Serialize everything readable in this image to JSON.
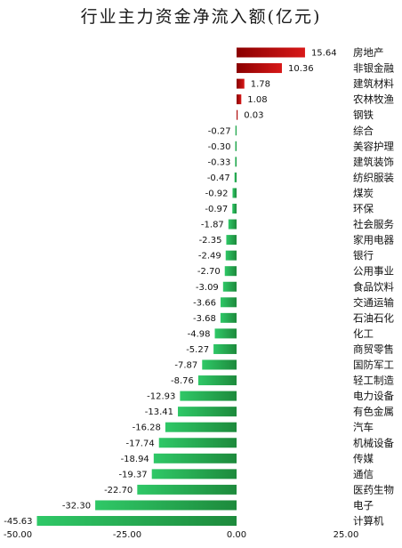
{
  "chart_data": {
    "type": "bar",
    "orientation": "horizontal",
    "title": "行业主力资金净流入额(亿元)",
    "categories": [
      "房地产",
      "非银金融",
      "建筑材料",
      "农林牧渔",
      "钢铁",
      "综合",
      "美容护理",
      "建筑装饰",
      "纺织服装",
      "煤炭",
      "环保",
      "社会服务",
      "家用电器",
      "银行",
      "公用事业",
      "食品饮料",
      "交通运输",
      "石油石化",
      "化工",
      "商贸零售",
      "国防军工",
      "轻工制造",
      "电力设备",
      "有色金属",
      "汽车",
      "机械设备",
      "传媒",
      "通信",
      "医药生物",
      "电子",
      "计算机"
    ],
    "values": [
      15.64,
      10.36,
      1.78,
      1.08,
      0.03,
      -0.27,
      -0.3,
      -0.33,
      -0.47,
      -0.92,
      -0.97,
      -1.87,
      -2.35,
      -2.49,
      -2.7,
      -3.09,
      -3.66,
      -3.68,
      -4.98,
      -5.27,
      -7.87,
      -8.76,
      -12.93,
      -13.41,
      -16.28,
      -17.74,
      -18.94,
      -19.37,
      -22.7,
      -32.3,
      -45.63
    ],
    "value_labels": [
      "15.64",
      "10.36",
      "1.78",
      "1.08",
      "0.03",
      "-0.27",
      "-0.30",
      "-0.33",
      "-0.47",
      "-0.92",
      "-0.97",
      "-1.87",
      "-2.35",
      "-2.49",
      "-2.70",
      "-3.09",
      "-3.66",
      "-3.68",
      "-4.98",
      "-5.27",
      "-7.87",
      "-8.76",
      "-12.93",
      "-13.41",
      "-16.28",
      "-17.74",
      "-18.94",
      "-19.37",
      "-22.70",
      "-32.30",
      "-45.63"
    ],
    "xlim": [
      -50,
      25
    ],
    "xticks": [
      "-50.00",
      "-25.00",
      "0.00",
      "25.00"
    ],
    "xtick_values": [
      -50,
      -25,
      0,
      25
    ],
    "grid": false,
    "colors": {
      "positive": "#d81818",
      "positive_dark": "#8a0000",
      "negative": "#2fc867",
      "negative_dark": "#1d8a3c"
    }
  }
}
